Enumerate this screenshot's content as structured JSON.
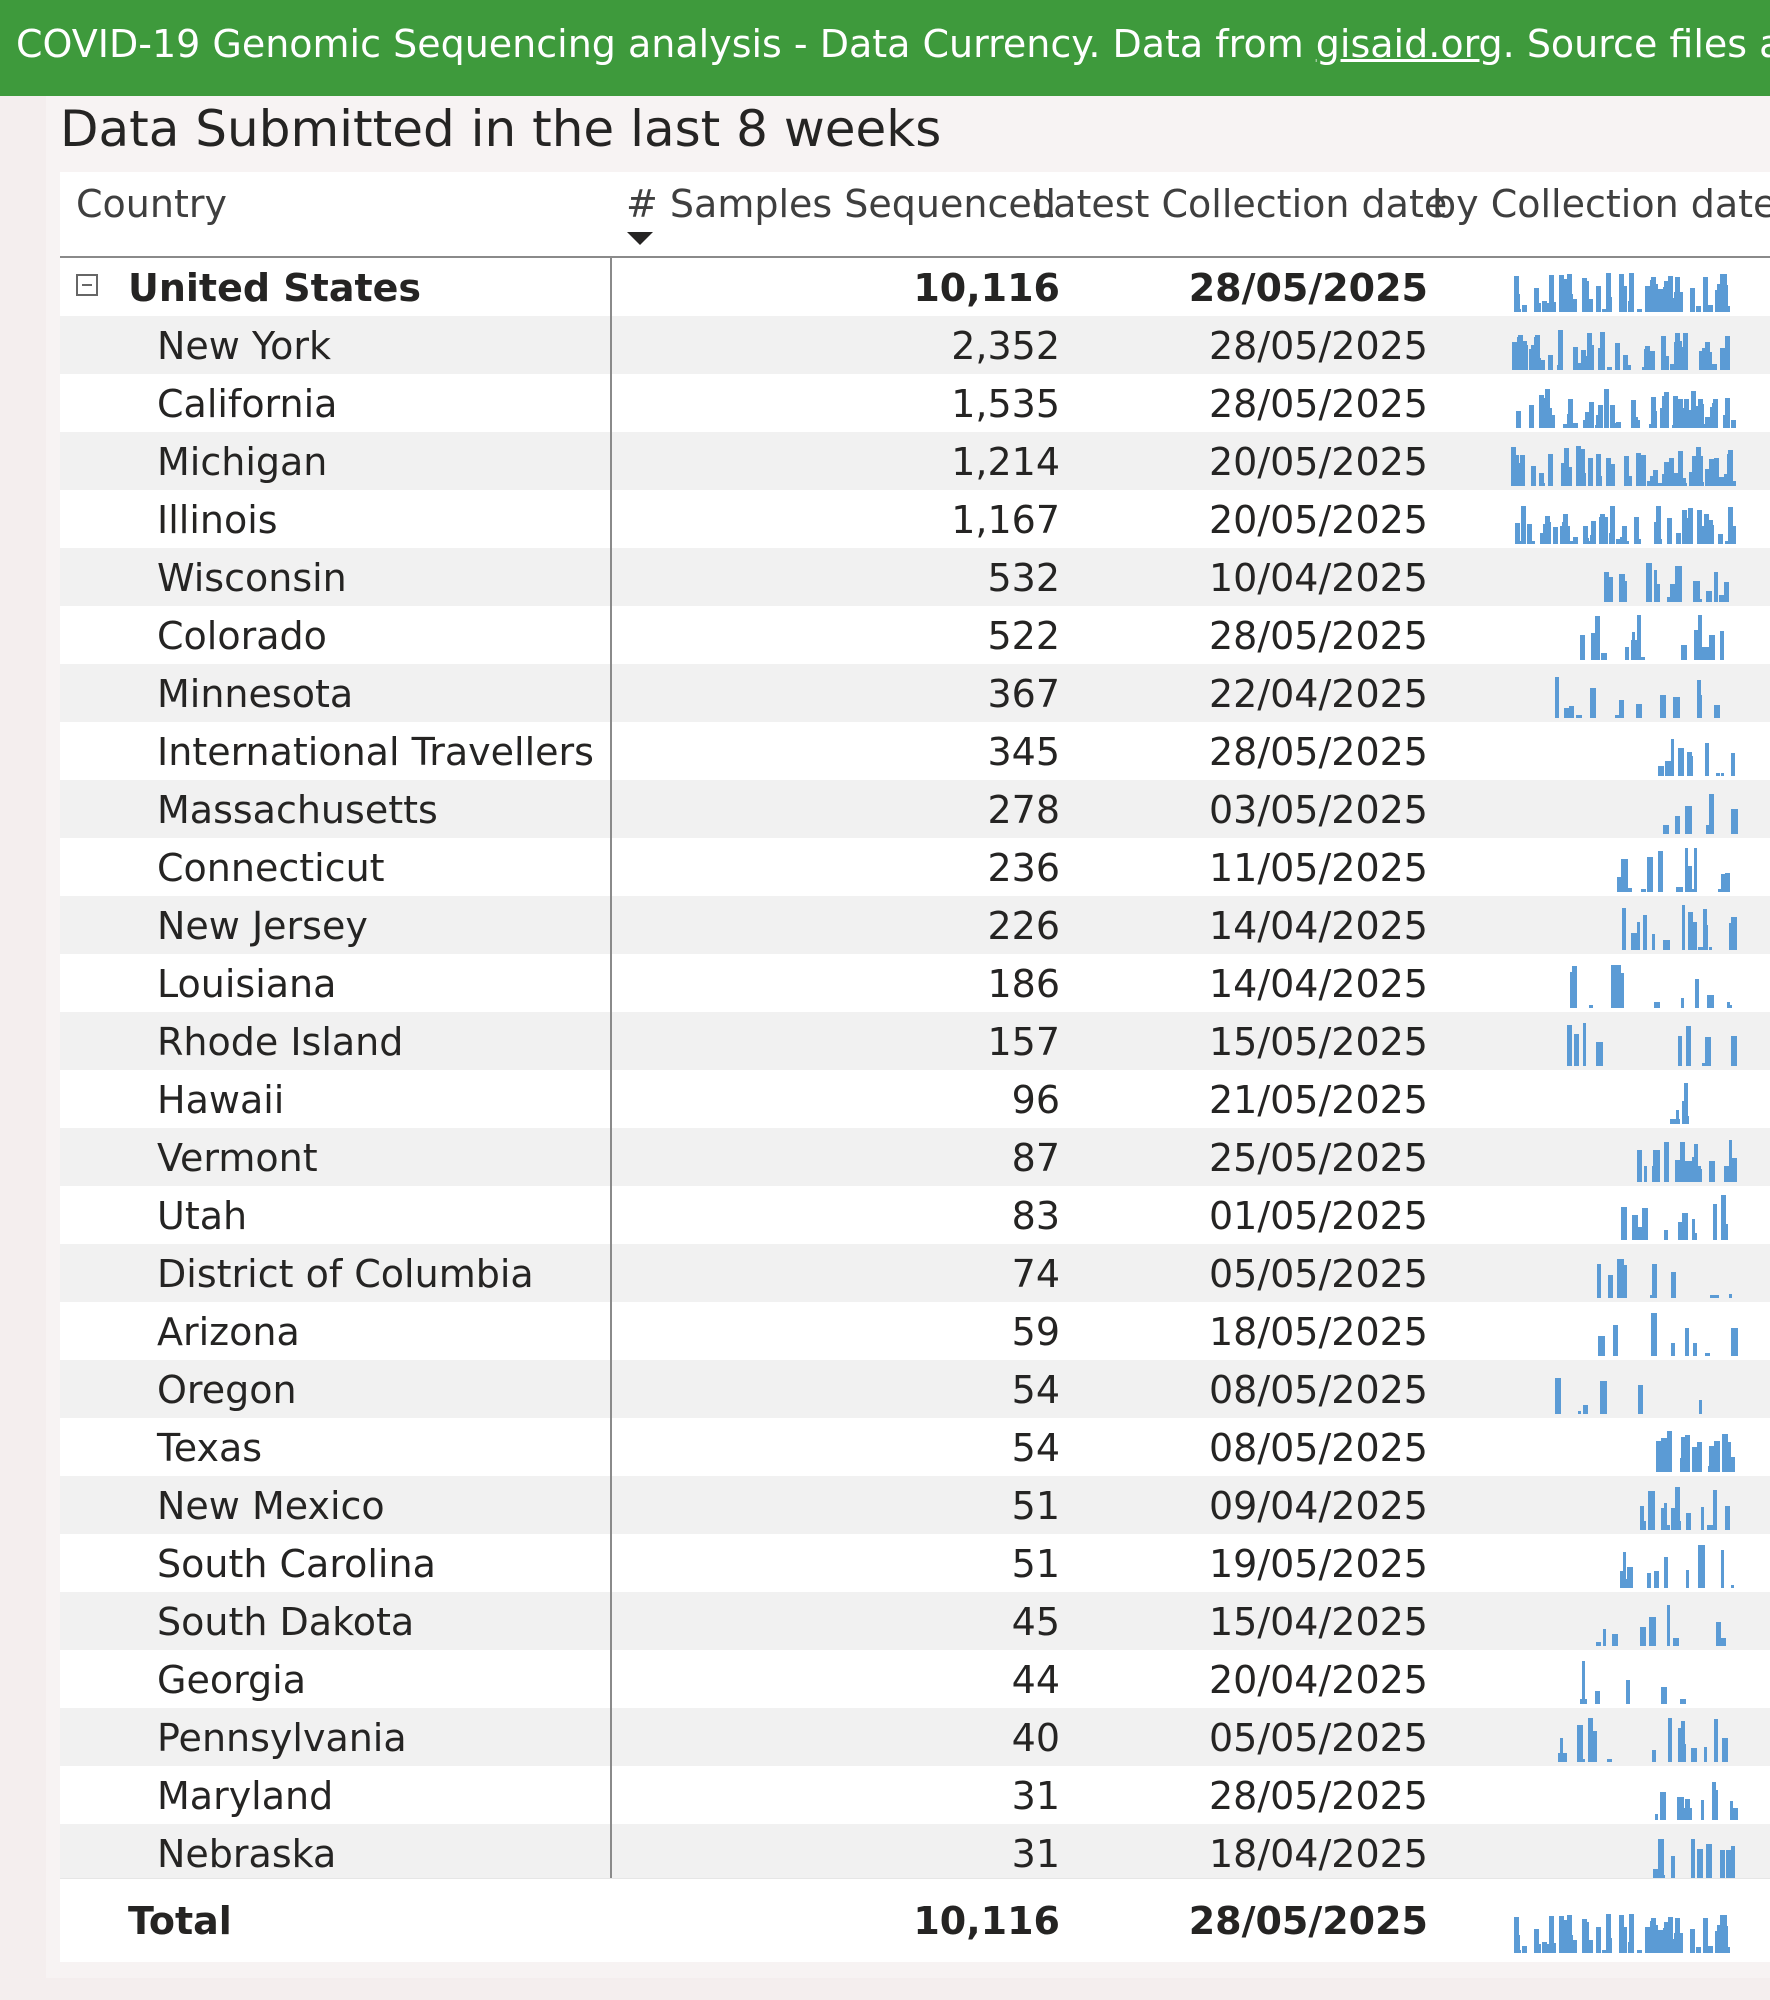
{
  "banner": {
    "text_before": "COVID-19 Genomic Sequencing analysis - Data Currency. Data from ",
    "link": "gisaid.org",
    "text_after": ". Source files and info on"
  },
  "title": "Data Submitted in the last 8 weeks",
  "columns": {
    "country": "Country",
    "samples": "# Samples Sequenced",
    "latest": "Latest Collection date",
    "spark": "by Collection date"
  },
  "rows": [
    {
      "name": "United States",
      "samples": "10,116",
      "latest": "28/05/2025",
      "bold": true
    },
    {
      "name": "New York",
      "samples": "2,352",
      "latest": "28/05/2025"
    },
    {
      "name": "California",
      "samples": "1,535",
      "latest": "28/05/2025"
    },
    {
      "name": "Michigan",
      "samples": "1,214",
      "latest": "20/05/2025"
    },
    {
      "name": "Illinois",
      "samples": "1,167",
      "latest": "20/05/2025"
    },
    {
      "name": "Wisconsin",
      "samples": "532",
      "latest": "10/04/2025"
    },
    {
      "name": "Colorado",
      "samples": "522",
      "latest": "28/05/2025"
    },
    {
      "name": "Minnesota",
      "samples": "367",
      "latest": "22/04/2025"
    },
    {
      "name": "International Travellers",
      "samples": "345",
      "latest": "28/05/2025"
    },
    {
      "name": "Massachusetts",
      "samples": "278",
      "latest": "03/05/2025"
    },
    {
      "name": "Connecticut",
      "samples": "236",
      "latest": "11/05/2025"
    },
    {
      "name": "New Jersey",
      "samples": "226",
      "latest": "14/04/2025"
    },
    {
      "name": "Louisiana",
      "samples": "186",
      "latest": "14/04/2025"
    },
    {
      "name": "Rhode Island",
      "samples": "157",
      "latest": "15/05/2025"
    },
    {
      "name": "Hawaii",
      "samples": "96",
      "latest": "21/05/2025"
    },
    {
      "name": "Vermont",
      "samples": "87",
      "latest": "25/05/2025"
    },
    {
      "name": "Utah",
      "samples": "83",
      "latest": "01/05/2025"
    },
    {
      "name": "District of Columbia",
      "samples": "74",
      "latest": "05/05/2025"
    },
    {
      "name": "Arizona",
      "samples": "59",
      "latest": "18/05/2025"
    },
    {
      "name": "Oregon",
      "samples": "54",
      "latest": "08/05/2025"
    },
    {
      "name": "Texas",
      "samples": "54",
      "latest": "08/05/2025"
    },
    {
      "name": "New Mexico",
      "samples": "51",
      "latest": "09/04/2025"
    },
    {
      "name": "South Carolina",
      "samples": "51",
      "latest": "19/05/2025"
    },
    {
      "name": "South Dakota",
      "samples": "45",
      "latest": "15/04/2025"
    },
    {
      "name": "Georgia",
      "samples": "44",
      "latest": "20/04/2025"
    },
    {
      "name": "Pennsylvania",
      "samples": "40",
      "latest": "05/05/2025"
    },
    {
      "name": "Maryland",
      "samples": "31",
      "latest": "28/05/2025"
    },
    {
      "name": "Nebraska",
      "samples": "31",
      "latest": "18/04/2025"
    }
  ],
  "total": {
    "label": "Total",
    "samples": "10,116",
    "latest": "28/05/2025"
  },
  "colors": {
    "banner": "#3e9a3c",
    "spark": "#5b9bd5",
    "alt_row": "#f1f1f1"
  }
}
